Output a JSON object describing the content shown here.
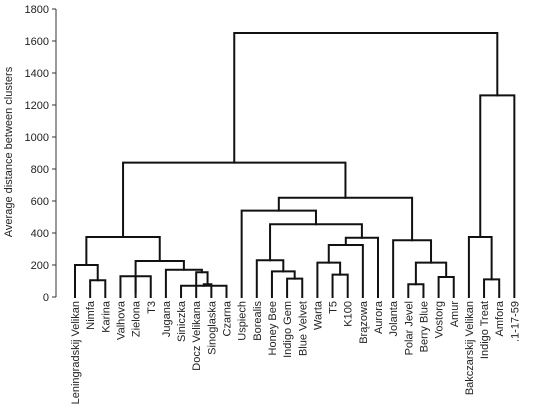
{
  "chart_data": {
    "type": "dendrogram",
    "title": "",
    "ylabel": "Average distance between clusters",
    "xlabel": "",
    "ylim": [
      0,
      1800
    ],
    "yticks": [
      0,
      200,
      400,
      600,
      800,
      1000,
      1200,
      1400,
      1600,
      1800
    ],
    "grid": false,
    "leaves": [
      "Leningradskij Velikan",
      "Nimfa",
      "Karina",
      "Valhova",
      "Zielona",
      "T3",
      "Jugana",
      "Siniczka",
      "Docz Velikana",
      "Sinoglaska",
      "Czarna",
      "Uspiech",
      "Borealis",
      "Honey Bee",
      "Indigo Gem",
      "Blue Velvet",
      "Warta",
      "T5",
      "K100",
      "Brązowa",
      "Aurora",
      "Jolanta",
      "Polar Jevel",
      "Berry Blue",
      "Vostorg",
      "Amur",
      "Bakczarskij Velikan",
      "Indigo Treat",
      "Amfora",
      ".1-17-59"
    ],
    "merges": [
      {
        "a": "Nimfa",
        "b": "Karina",
        "height": 105
      },
      {
        "a": "Valhova",
        "b": "T3",
        "height": 130
      },
      {
        "a": "Zielona",
        "b": "T3",
        "height": 30
      },
      {
        "a": "Siniczka",
        "b": "Czarna",
        "height": 70
      },
      {
        "a": "Sinoglaska",
        "b": "Czarna",
        "height": 80
      },
      {
        "a": "Docz Velikana",
        "b": "Sinoglaska",
        "height": 155
      },
      {
        "a": "Jugana",
        "b": "Docz Velikana",
        "height": 170
      },
      {
        "a": "Leningradskij Velikan",
        "b": "Nimfa",
        "height": 200
      },
      {
        "a": "Valhova",
        "b": "Jugana",
        "height": 225
      },
      {
        "a": "Leningradskij Velikan",
        "b": "Valhova",
        "height": 375
      },
      {
        "a": "Indigo Gem",
        "b": "Blue Velvet",
        "height": 115
      },
      {
        "a": "Honey Bee",
        "b": "Indigo Gem",
        "height": 160
      },
      {
        "a": "Borealis",
        "b": "Honey Bee",
        "height": 230
      },
      {
        "a": "T5",
        "b": "K100",
        "height": 140
      },
      {
        "a": "Warta",
        "b": "T5",
        "height": 215
      },
      {
        "a": "Warta",
        "b": "Brązowa",
        "height": 325
      },
      {
        "a": "Brązowa",
        "b": "Aurora",
        "height": 370
      },
      {
        "a": "Borealis",
        "b": "Warta",
        "height": 455
      },
      {
        "a": "Uspiech",
        "b": "Borealis",
        "height": 540
      },
      {
        "a": "Vostorg",
        "b": "Amur",
        "height": 125
      },
      {
        "a": "Polar Jevel",
        "b": "Berry Blue",
        "height": 80
      },
      {
        "a": "Berry Blue",
        "b": "Vostorg",
        "height": 215
      },
      {
        "a": "Jolanta",
        "b": "Polar Jevel",
        "height": 355
      },
      {
        "a": "Uspiech",
        "b": "Jolanta",
        "height": 620
      },
      {
        "a": "Leningradskij Velikan",
        "b": "Uspiech",
        "height": 840
      },
      {
        "a": "Indigo Treat",
        "b": "Amfora",
        "height": 110
      },
      {
        "a": "Bakczarskij Velikan",
        "b": "Indigo Treat",
        "height": 375
      },
      {
        "a": "Bakczarskij Velikan",
        "b": ".1-17-59",
        "height": 1260
      },
      {
        "a": "Leningradskij Velikan",
        "b": "Bakczarskij Velikan",
        "height": 1650
      }
    ]
  }
}
